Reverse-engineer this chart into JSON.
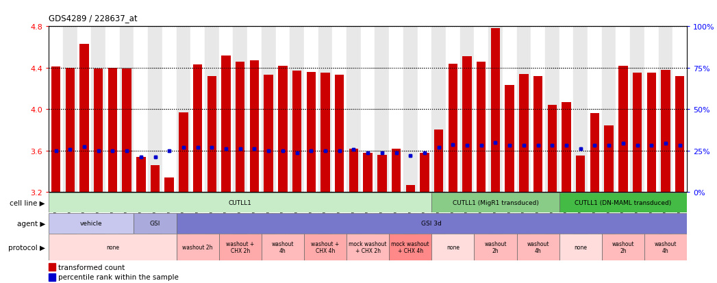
{
  "title": "GDS4289 / 228637_at",
  "samples": [
    "GSM731500",
    "GSM731501",
    "GSM731502",
    "GSM731503",
    "GSM731504",
    "GSM731505",
    "GSM731518",
    "GSM731519",
    "GSM731520",
    "GSM731506",
    "GSM731507",
    "GSM731508",
    "GSM731509",
    "GSM731510",
    "GSM731511",
    "GSM731512",
    "GSM731513",
    "GSM731514",
    "GSM731515",
    "GSM731516",
    "GSM731517",
    "GSM731521",
    "GSM731522",
    "GSM731523",
    "GSM731524",
    "GSM731525",
    "GSM731526",
    "GSM731527",
    "GSM731528",
    "GSM731529",
    "GSM731531",
    "GSM731532",
    "GSM731533",
    "GSM731534",
    "GSM731535",
    "GSM731536",
    "GSM731537",
    "GSM731538",
    "GSM731539",
    "GSM731540",
    "GSM731541",
    "GSM731542",
    "GSM731543",
    "GSM731544",
    "GSM731545"
  ],
  "bar_values": [
    4.41,
    4.4,
    4.63,
    4.39,
    4.4,
    4.39,
    3.54,
    3.46,
    3.34,
    3.97,
    4.43,
    4.32,
    4.52,
    4.46,
    4.47,
    4.33,
    4.42,
    4.37,
    4.36,
    4.35,
    4.33,
    3.62,
    3.58,
    3.56,
    3.62,
    3.27,
    3.58,
    3.8,
    4.44,
    4.51,
    4.46,
    4.78,
    4.23,
    4.34,
    4.32,
    4.04,
    4.07,
    3.55,
    3.96,
    3.84,
    4.42,
    4.35,
    4.35,
    4.38,
    4.32
  ],
  "percentile_values": [
    3.6,
    3.61,
    3.64,
    3.6,
    3.6,
    3.6,
    3.54,
    3.54,
    3.6,
    3.63,
    3.63,
    3.63,
    3.62,
    3.62,
    3.62,
    3.6,
    3.6,
    3.58,
    3.6,
    3.6,
    3.6,
    3.61,
    3.58,
    3.58,
    3.58,
    3.55,
    3.58,
    3.63,
    3.66,
    3.65,
    3.65,
    3.68,
    3.65,
    3.65,
    3.65,
    3.65,
    3.65,
    3.62,
    3.65,
    3.65,
    3.67,
    3.65,
    3.65,
    3.67,
    3.65
  ],
  "ymin": 3.2,
  "ymax": 4.8,
  "yticks": [
    3.2,
    3.6,
    4.0,
    4.4,
    4.8
  ],
  "ytick_labels": [
    "3.2",
    "3.6",
    "4.0",
    "4.4",
    "4.8"
  ],
  "right_ytick_pcts": [
    0,
    25,
    50,
    75,
    100
  ],
  "right_ytick_labels": [
    "0%",
    "25%",
    "50%",
    "75%",
    "100%"
  ],
  "bar_color": "#cc0000",
  "percentile_color": "#0000cc",
  "cell_line_rows": [
    {
      "label": "CUTLL1",
      "start": 0,
      "end": 27,
      "color": "#c8ecc8"
    },
    {
      "label": "CUTLL1 (MigR1 transduced)",
      "start": 27,
      "end": 36,
      "color": "#88cc88"
    },
    {
      "label": "CUTLL1 (DN-MAML transduced)",
      "start": 36,
      "end": 45,
      "color": "#44bb44"
    }
  ],
  "agent_rows": [
    {
      "label": "vehicle",
      "start": 0,
      "end": 6,
      "color": "#c8c8ee"
    },
    {
      "label": "GSI",
      "start": 6,
      "end": 9,
      "color": "#aaaadd"
    },
    {
      "label": "GSI 3d",
      "start": 9,
      "end": 45,
      "color": "#7777cc"
    }
  ],
  "protocol_rows": [
    {
      "label": "none",
      "start": 0,
      "end": 9,
      "color": "#ffdddd"
    },
    {
      "label": "washout 2h",
      "start": 9,
      "end": 12,
      "color": "#ffbbbb"
    },
    {
      "label": "washout +\nCHX 2h",
      "start": 12,
      "end": 15,
      "color": "#ffaaaa"
    },
    {
      "label": "washout\n4h",
      "start": 15,
      "end": 18,
      "color": "#ffbbbb"
    },
    {
      "label": "washout +\nCHX 4h",
      "start": 18,
      "end": 21,
      "color": "#ffaaaa"
    },
    {
      "label": "mock washout\n+ CHX 2h",
      "start": 21,
      "end": 24,
      "color": "#ffbbbb"
    },
    {
      "label": "mock washout\n+ CHX 4h",
      "start": 24,
      "end": 27,
      "color": "#ff8888"
    },
    {
      "label": "none",
      "start": 27,
      "end": 30,
      "color": "#ffdddd"
    },
    {
      "label": "washout\n2h",
      "start": 30,
      "end": 33,
      "color": "#ffbbbb"
    },
    {
      "label": "washout\n4h",
      "start": 33,
      "end": 36,
      "color": "#ffbbbb"
    },
    {
      "label": "none",
      "start": 36,
      "end": 39,
      "color": "#ffdddd"
    },
    {
      "label": "washout\n2h",
      "start": 39,
      "end": 42,
      "color": "#ffbbbb"
    },
    {
      "label": "washout\n4h",
      "start": 42,
      "end": 45,
      "color": "#ffbbbb"
    }
  ]
}
